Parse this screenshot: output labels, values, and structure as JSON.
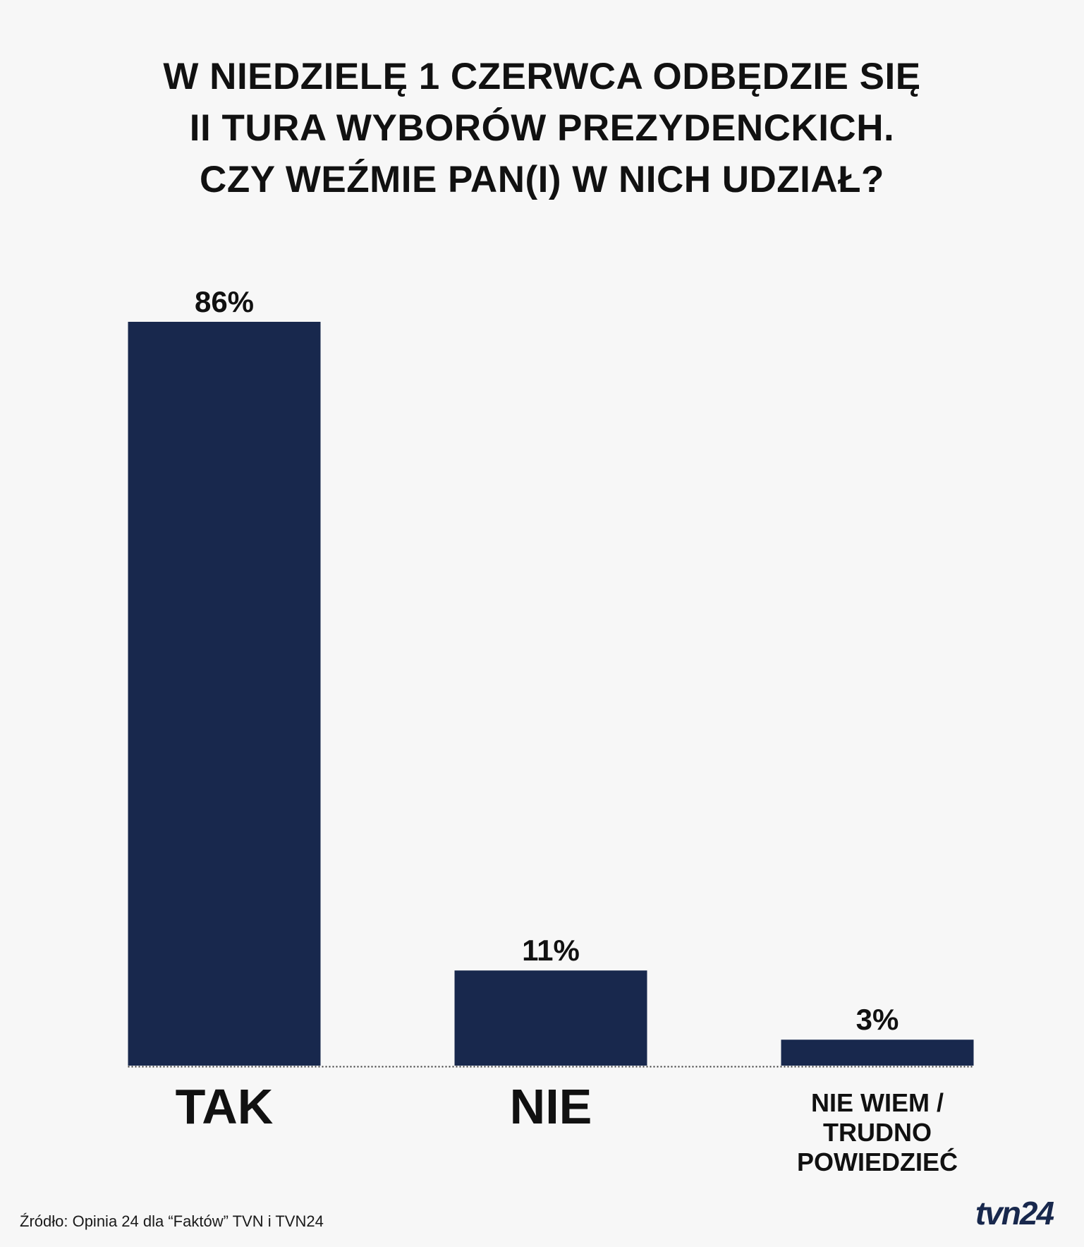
{
  "colors": {
    "background": "#f7f7f7",
    "bar": "#18284d",
    "text": "#111111",
    "logo": "#18284d"
  },
  "chart_data": {
    "type": "bar",
    "title_lines": [
      "W NIEDZIELĘ 1 CZERWCA ODBĘDZIE SIĘ",
      "II TURA WYBORÓW PREZYDENCKICH.",
      "CZY WEŹMIE PAN(I) W NICH UDZIAŁ?"
    ],
    "categories": [
      [
        "TAK"
      ],
      [
        "NIE"
      ],
      [
        "NIE WIEM /",
        "TRUDNO",
        "POWIEDZIEĆ"
      ]
    ],
    "values": [
      86,
      11,
      3
    ],
    "value_labels": [
      "86%",
      "11%",
      "3%"
    ],
    "ylim": [
      0,
      86
    ],
    "grid": false,
    "baseline": "dotted"
  },
  "source": "Źródło: Opinia 24 dla “Faktów” TVN i TVN24",
  "logo": {
    "text": "tvn24"
  }
}
